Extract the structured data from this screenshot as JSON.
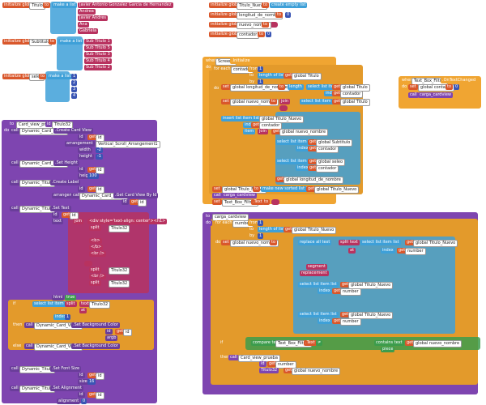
{
  "labels": {
    "init": "initialize global",
    "to": "to",
    "make": "make a list",
    "Titulo": "Titulo",
    "Subtitulo": "Subtitulo",
    "seleo": "seleo",
    "a1": "Javier Antonio Gonzalez Garcia de Hernandez",
    "a2": "Andrea",
    "a3": "Javier Andres",
    "a4": "Ana",
    "a5": "Gabriela",
    "s1": "Sub Titulo 1",
    "s2": "Sub Titulo 5",
    "s3": "Sub Titulo 3",
    "s4": "Sub Titulo 4",
    "s5": "Sub Titulo 2",
    "n1": "1",
    "n2": "2",
    "n3": "3",
    "n4": "4",
    "n0": "0",
    "Titulo_Nuevo": "Titulo_Nuevo",
    "empty": "create empty list",
    "longitud": "longitud_de_nombre",
    "nuevo": "nuevo_nombre",
    "contador": "contador",
    "when": "when",
    "Screen1": "Screen1",
    "initialize": ".Initialize",
    "do": "do",
    "foreach": "for each",
    "from": "from",
    "by": "by",
    "lengthof": "length of list list",
    "get": "get",
    "gTitulo": "global Titulo",
    "set": "set",
    "length": "length",
    "select": "select list item list",
    "index": "index",
    "join": "join",
    "insert": "insert list item list",
    "item": "item",
    "gTituloNuevo": "global Titulo_Nuevo",
    "gNuevo": "global nuevo_nombre",
    "gLong": "global longitud_de_nombre",
    "gSub": "global Subtitulo",
    "gSeleo": "global seleo",
    "gContador": "global contador",
    "sorted": "make new sorted list from",
    "call": "call",
    "carga": "carga_cardview",
    "tbf": "Text_Box_Filtrar",
    "dotText": ".Text",
    "changed": ".OnTextChanged",
    "prueba": "Card_view_prueba",
    "id": "id",
    "Titulo32": "Titulo32",
    "dcv": "Dynamic_Card_View1",
    "dt": "Dynamic_Titulo",
    "createCard": ".Create Card View",
    "arrangement": "arrangement",
    "vsa": "Vertical_Scroll_Arrangement1",
    "width": "width",
    "height": "height",
    "m1": "-1",
    "m2": "-2",
    "n100": "100",
    "setHeight": ".Set Height",
    "createLabel": ".Create Label",
    "getCard": ".Get Card View By Id",
    "setText": ".Set Text",
    "text": "text",
    "h1": "<div style='text-align: center'><h1>",
    "b": "<b>",
    "bc": "</b>",
    "br": "<br />",
    "html": "html",
    "true": "true",
    "if": "if",
    "then": "then",
    "else": "else",
    "split": "split",
    "at": "at",
    "setBg": ".Set Background Color",
    "argb": "argb",
    "setFont": ".Set Font Size",
    "size": "size",
    "n16": "16",
    "setAlign": ".Set Alignment",
    "alignment": "alignment",
    "number": "number",
    "replace": "replace all text",
    "segment": "segment",
    "replacement": "replacement",
    "compare": "compare texts",
    "neq": "≠",
    "contains": "contains text",
    "piece": "piece"
  }
}
